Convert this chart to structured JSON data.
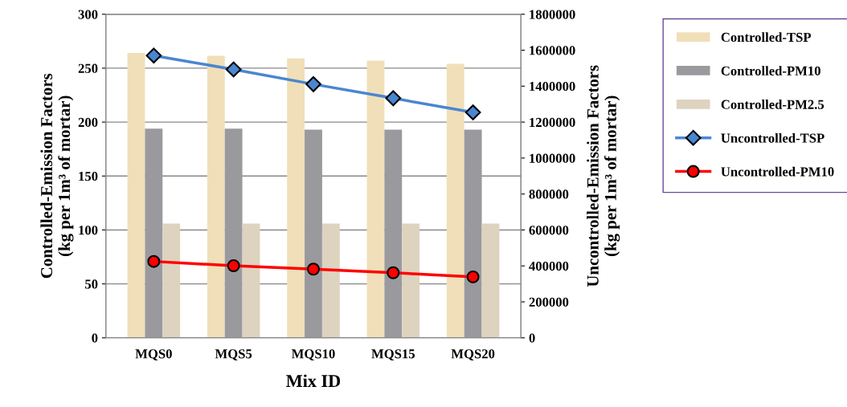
{
  "chart_data": {
    "type": "bar",
    "xlabel": "Mix ID",
    "ylabel": "Controlled-Emission Factors\n(kg per 1m³ of mortar)",
    "y2label": "Uncontrolled-Emission Factors\n(kg per 1m³ of mortar)",
    "categories": [
      "MQS0",
      "MQS5",
      "MQS10",
      "MQS15",
      "MQS20"
    ],
    "series": [
      {
        "name": "Controlled-TSP",
        "color": "#f0dfb8",
        "values": [
          264,
          261.5,
          259,
          257,
          254
        ]
      },
      {
        "name": "Controlled-PM10",
        "color": "#9a9a9e",
        "values": [
          194,
          194,
          193,
          193,
          193
        ]
      },
      {
        "name": "Controlled-PM2.5",
        "color": "#ddd3bf",
        "values": [
          106,
          106,
          106,
          106,
          106
        ]
      },
      {
        "name": "Uncontrolled-TSP",
        "type": "line",
        "axis": "y2",
        "marker": "diamond",
        "color": "#4a86d0",
        "values": [
          1570000,
          1493000,
          1411000,
          1333000,
          1254000
        ]
      },
      {
        "name": "Uncontrolled-PM10",
        "type": "line",
        "axis": "y2",
        "marker": "circle",
        "color": "#ff0000",
        "values": [
          425000,
          401000,
          382000,
          362000,
          339000
        ]
      }
    ],
    "ylim": [
      0,
      300
    ],
    "yticks": [
      0,
      50,
      100,
      150,
      200,
      250,
      300
    ],
    "y2lim": [
      0,
      1800000
    ],
    "y2ticks": [
      0,
      200000,
      400000,
      600000,
      800000,
      1000000,
      1200000,
      1400000,
      1600000,
      1800000
    ],
    "grid": "y",
    "legend": "right"
  }
}
